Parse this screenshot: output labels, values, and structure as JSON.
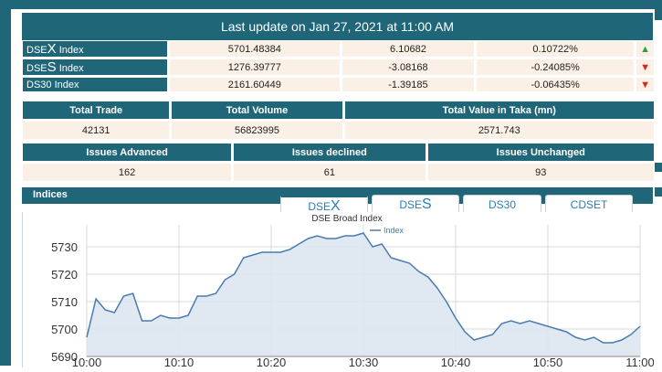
{
  "update": {
    "text": "Last update on Jan 27, 2021 at 11:00 AM"
  },
  "indices": [
    {
      "prefix": "DSE",
      "big": "X",
      "suffix": " Index",
      "value": "5701.48384",
      "change": "6.10682",
      "pct": "0.10722%",
      "dir": "up"
    },
    {
      "prefix": "DSE",
      "big": "S",
      "suffix": " Index",
      "value": "1276.39777",
      "change": "-3.08168",
      "pct": "-0.24085%",
      "dir": "down"
    },
    {
      "prefix": "DS30 Index",
      "big": "",
      "suffix": "",
      "value": "2161.60449",
      "change": "-1.39185",
      "pct": "-0.06435%",
      "dir": "down"
    }
  ],
  "trade_stats": {
    "headers": [
      "Total Trade",
      "Total Volume",
      "Total Value in Taka (mn)"
    ],
    "values": [
      "42131",
      "56823995",
      "2571.743"
    ]
  },
  "issue_stats": {
    "headers": [
      "Issues Advanced",
      "Issues declined",
      "Issues Unchanged"
    ],
    "values": [
      "162",
      "61",
      "93"
    ]
  },
  "indices_section": {
    "title": "Indices"
  },
  "tabs": [
    {
      "pre": "DSE",
      "big": "X",
      "active": true
    },
    {
      "pre": "DSE",
      "big": "S",
      "active": false
    },
    {
      "pre": "DS30",
      "big": "",
      "active": false
    },
    {
      "pre": "CDSET",
      "big": "",
      "active": false
    }
  ],
  "icons": {
    "up": "double-chevron-up-icon",
    "down": "double-chevron-down-icon"
  },
  "colors": {
    "header": "#1e6678",
    "cell": "#fbf0e6",
    "up": "#2ea043",
    "down": "#d9261c",
    "line": "#4a7bb0",
    "fill": "#dde6f0"
  },
  "chart_data": {
    "type": "area",
    "title": "DSE Broad Index",
    "legend": "Index",
    "legend_position": "top",
    "grid": true,
    "x_ticks": [
      "10:00",
      "10:10",
      "10:20",
      "10:30",
      "10:40",
      "10:50",
      "11:00"
    ],
    "y_ticks": [
      5690,
      5700,
      5710,
      5720,
      5730
    ],
    "ylim": [
      5690,
      5738
    ],
    "x_minutes": [
      0,
      1,
      2,
      3,
      4,
      5,
      6,
      7,
      8,
      9,
      10,
      11,
      12,
      13,
      14,
      15,
      16,
      17,
      18,
      19,
      20,
      21,
      22,
      23,
      24,
      25,
      26,
      27,
      28,
      29,
      30,
      31,
      32,
      33,
      34,
      35,
      36,
      37,
      38,
      39,
      40,
      41,
      42,
      43,
      44,
      45,
      46,
      47,
      48,
      49,
      50,
      51,
      52,
      53,
      54,
      55,
      56,
      57,
      58,
      59,
      60
    ],
    "values": [
      5697,
      5711,
      5707,
      5706,
      5712,
      5713,
      5703,
      5703,
      5705,
      5704,
      5704,
      5705,
      5712,
      5712,
      5713,
      5718,
      5720,
      5726,
      5727,
      5728,
      5728,
      5728,
      5729,
      5731,
      5733,
      5734,
      5733,
      5733,
      5734,
      5734,
      5735,
      5730,
      5731,
      5726,
      5725,
      5724,
      5721,
      5719,
      5715,
      5710,
      5704,
      5699,
      5696,
      5697,
      5698,
      5702,
      5703,
      5702,
      5703,
      5702,
      5701,
      5700,
      5699,
      5697,
      5696,
      5697,
      5695,
      5695,
      5696,
      5698,
      5701
    ]
  }
}
